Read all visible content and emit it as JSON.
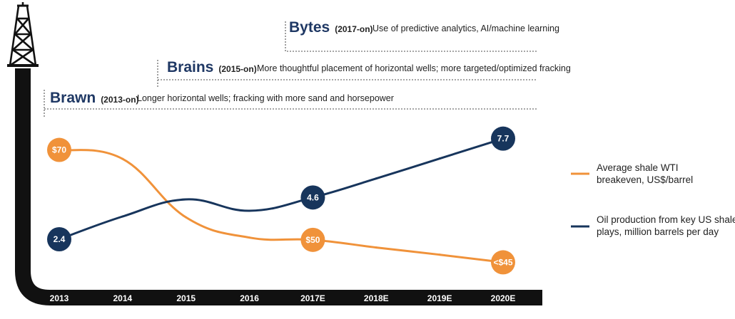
{
  "chart_data": {
    "type": "line",
    "categories": [
      "2013",
      "2014",
      "2015",
      "2016",
      "2017E",
      "2018E",
      "2019E",
      "2020E"
    ],
    "series": [
      {
        "name": "Average shale WTI breakeven, US$/barrel",
        "legend_lines": [
          "Average shale WTI",
          "breakeven, US$/barrel"
        ],
        "color": "#f0923a",
        "values": [
          70,
          68,
          55,
          50.5,
          50,
          48.3,
          46.7,
          45
        ],
        "labels": [
          {
            "index": 0,
            "text": "$70"
          },
          {
            "index": 4,
            "text": "$50"
          },
          {
            "index": 7,
            "text": "<$45"
          }
        ]
      },
      {
        "name": "Oil production from key US shale plays, million barrels per day",
        "legend_lines": [
          "Oil production from key US shale",
          "plays, million barrels per day"
        ],
        "color": "#17355c",
        "values": [
          2.4,
          3.6,
          4.5,
          3.9,
          4.6,
          5.6,
          6.65,
          7.7
        ],
        "labels": [
          {
            "index": 0,
            "text": "2.4"
          },
          {
            "index": 4,
            "text": "4.6"
          },
          {
            "index": 7,
            "text": "7.7"
          }
        ]
      }
    ],
    "ylim_left": [
      40,
      78
    ],
    "ylim_right": [
      0,
      9
    ],
    "grid": false,
    "legend_position": "right"
  },
  "annotations": [
    {
      "title": "Bytes",
      "years": "(2017-on)",
      "desc": "Use of predictive analytics, AI/machine learning"
    },
    {
      "title": "Brains",
      "years": "(2015-on)",
      "desc": "More thoughtful placement of horizontal wells; more targeted/optimized fracking"
    },
    {
      "title": "Brawn",
      "years": "(2013-on)",
      "desc": "Longer horizontal wells; fracking with more sand and horsepower"
    }
  ],
  "icons": {
    "derrick": "oil-derrick-icon"
  }
}
